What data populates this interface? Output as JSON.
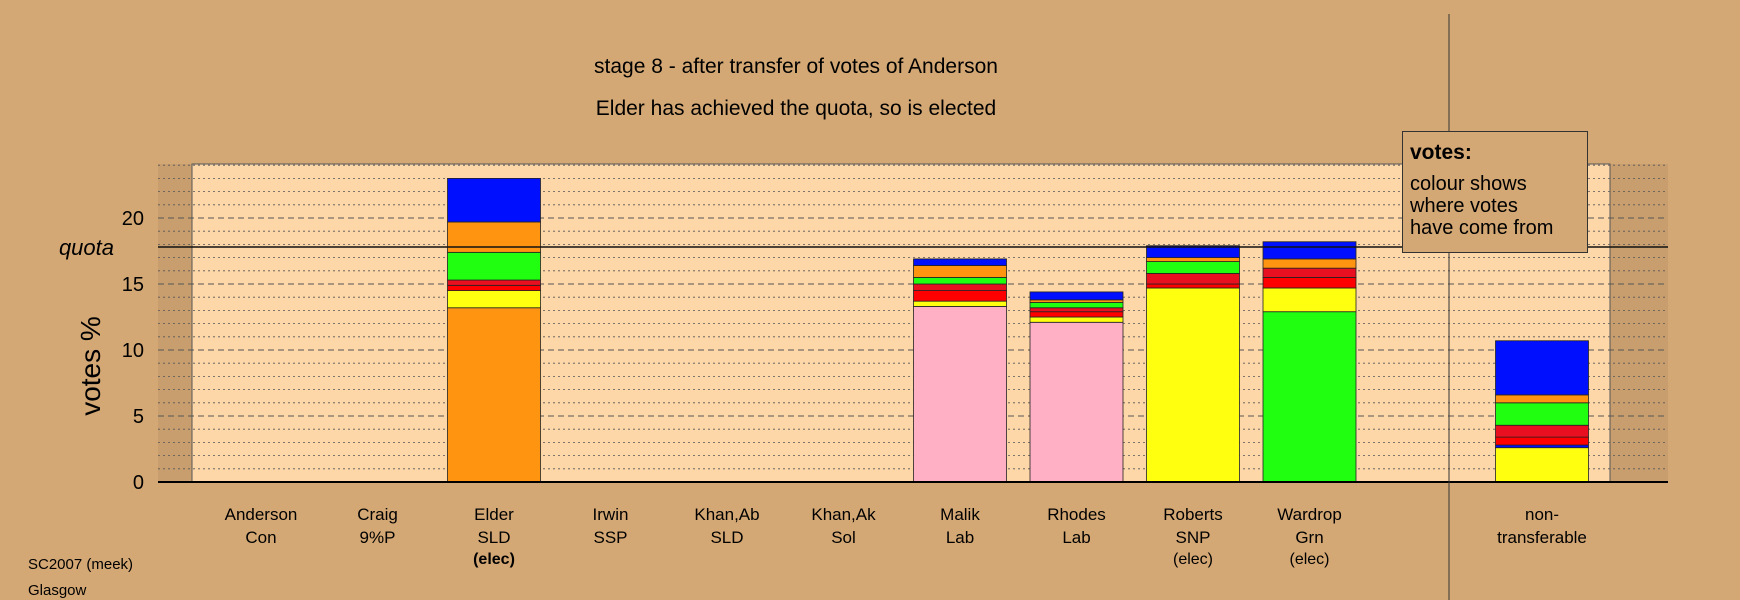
{
  "chart_data": {
    "type": "bar",
    "stacked": true,
    "title": "stage 8 - after transfer of votes of Anderson",
    "subtitle": "Elder has achieved the quota, so is elected",
    "ylabel": "votes %",
    "xlabel": "",
    "ylim": [
      0,
      24
    ],
    "yticks": [
      0,
      5,
      10,
      15,
      20
    ],
    "quota": 17.8,
    "quota_label": "quota",
    "grid": true,
    "legend_position": "top-right",
    "categories": [
      {
        "name": "Anderson",
        "party": "Con",
        "status": ""
      },
      {
        "name": "Craig",
        "party": "9%P",
        "status": ""
      },
      {
        "name": "Elder",
        "party": "SLD",
        "status": "(elec)",
        "status_bold": true
      },
      {
        "name": "Irwin",
        "party": "SSP",
        "status": ""
      },
      {
        "name": "Khan,Ab",
        "party": "SLD",
        "status": ""
      },
      {
        "name": "Khan,Ak",
        "party": "Sol",
        "status": ""
      },
      {
        "name": "Malik",
        "party": "Lab",
        "status": ""
      },
      {
        "name": "Rhodes",
        "party": "Lab",
        "status": ""
      },
      {
        "name": "Roberts",
        "party": "SNP",
        "status": "(elec)"
      },
      {
        "name": "Wardrop",
        "party": "Grn",
        "status": "(elec)"
      }
    ],
    "non_transferable": {
      "line1": "non-",
      "line2": "transferable"
    },
    "stacks": [
      [],
      [],
      [
        {
          "value": 13.2,
          "color": "#ff9410"
        },
        {
          "value": 1.3,
          "color": "#ffff10"
        },
        {
          "value": 0.4,
          "color": "#ff0000"
        },
        {
          "value": 0.4,
          "color": "#e81020"
        },
        {
          "value": 2.1,
          "color": "#20ff10"
        },
        {
          "value": 2.3,
          "color": "#ff9410"
        },
        {
          "value": 3.3,
          "color": "#0010ff"
        }
      ],
      [],
      [],
      [],
      [
        {
          "value": 13.3,
          "color": "#ffb0c4"
        },
        {
          "value": 0.4,
          "color": "#ffff10"
        },
        {
          "value": 0.8,
          "color": "#ff0000"
        },
        {
          "value": 0.5,
          "color": "#e81020"
        },
        {
          "value": 0.5,
          "color": "#20ff10"
        },
        {
          "value": 0.9,
          "color": "#ff9410"
        },
        {
          "value": 0.5,
          "color": "#0010ff"
        }
      ],
      [
        {
          "value": 12.1,
          "color": "#ffb0c4"
        },
        {
          "value": 0.4,
          "color": "#ffff10"
        },
        {
          "value": 0.4,
          "color": "#ff0000"
        },
        {
          "value": 0.3,
          "color": "#e81020"
        },
        {
          "value": 0.4,
          "color": "#20ff10"
        },
        {
          "value": 0.2,
          "color": "#ff9410"
        },
        {
          "value": 0.6,
          "color": "#0010ff"
        }
      ],
      [
        {
          "value": 14.7,
          "color": "#ffff10"
        },
        {
          "value": 0.3,
          "color": "#ff0000"
        },
        {
          "value": 0.8,
          "color": "#e81020"
        },
        {
          "value": 0.9,
          "color": "#20ff10"
        },
        {
          "value": 0.3,
          "color": "#ff9410"
        },
        {
          "value": 0.9,
          "color": "#0010ff"
        }
      ],
      [
        {
          "value": 12.9,
          "color": "#20ff10"
        },
        {
          "value": 1.8,
          "color": "#ffff10"
        },
        {
          "value": 0.8,
          "color": "#ff0000"
        },
        {
          "value": 0.7,
          "color": "#e81020"
        },
        {
          "value": 0.7,
          "color": "#ff9410"
        },
        {
          "value": 1.3,
          "color": "#0010ff"
        }
      ]
    ],
    "non_transferable_stack": [
      {
        "value": 2.6,
        "color": "#ffff10"
      },
      {
        "value": 0.2,
        "color": "#0010ff"
      },
      {
        "value": 0.6,
        "color": "#ff0000"
      },
      {
        "value": 0.9,
        "color": "#e81020"
      },
      {
        "value": 1.7,
        "color": "#20ff10"
      },
      {
        "value": 0.6,
        "color": "#ff9410"
      },
      {
        "value": 4.1,
        "color": "#0010ff"
      }
    ]
  },
  "legend": {
    "title": "votes:",
    "line1": "colour shows",
    "line2": "where votes",
    "line3": "have come from"
  },
  "footer": {
    "line1": "SC2007 (meek)",
    "line2": "Glasgow"
  },
  "colors": {
    "background": "#d4a875",
    "plot_background": "#fed7a8",
    "outer_band": "#c99e6e"
  }
}
